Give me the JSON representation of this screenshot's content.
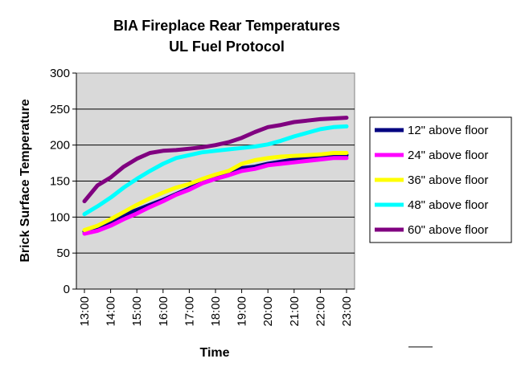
{
  "chart_data": {
    "type": "line",
    "title": "BIA Fireplace Rear Temperatures",
    "subtitle": "UL Fuel Protocol",
    "xlabel": "Time",
    "ylabel": "Brick Surface Temperature",
    "ylim": [
      0,
      300
    ],
    "yticks": [
      0,
      50,
      100,
      150,
      200,
      250,
      300
    ],
    "xtick_labels": [
      "13:00",
      "14:00",
      "15:00",
      "16:00",
      "17:00",
      "18:00",
      "19:00",
      "20:00",
      "21:00",
      "22:00",
      "23:00"
    ],
    "x_hours": [
      13,
      13.5,
      14,
      14.5,
      15,
      15.5,
      16,
      16.5,
      17,
      17.5,
      18,
      18.5,
      19,
      19.5,
      20,
      20.5,
      21,
      21.5,
      22,
      22.5,
      23
    ],
    "grid": "horizontal",
    "plot_background": "#d9d9d9",
    "legend_position": "right",
    "series": [
      {
        "name": "12\" above floor",
        "color": "#000080",
        "values": [
          80,
          86,
          94,
          103,
          110,
          117,
          124,
          132,
          140,
          150,
          155,
          160,
          168,
          170,
          174,
          177,
          180,
          182,
          184,
          186,
          186
        ]
      },
      {
        "name": "24\" above floor",
        "color": "#ff00ff",
        "values": [
          77,
          81,
          88,
          97,
          105,
          114,
          122,
          131,
          138,
          147,
          153,
          158,
          164,
          167,
          172,
          174,
          176,
          178,
          180,
          182,
          182
        ]
      },
      {
        "name": "36\" above floor",
        "color": "#ffff00",
        "values": [
          82,
          88,
          97,
          107,
          117,
          126,
          134,
          141,
          146,
          153,
          159,
          164,
          174,
          179,
          182,
          184,
          185,
          186,
          187,
          189,
          189
        ]
      },
      {
        "name": "48\" above floor",
        "color": "#00ffff",
        "values": [
          104,
          115,
          127,
          141,
          153,
          164,
          174,
          182,
          186,
          190,
          192,
          194,
          196,
          198,
          201,
          206,
          212,
          217,
          222,
          225,
          226
        ]
      },
      {
        "name": "60\" above floor",
        "color": "#800080",
        "values": [
          122,
          144,
          155,
          170,
          181,
          189,
          192,
          193,
          195,
          197,
          200,
          204,
          210,
          218,
          225,
          228,
          232,
          234,
          236,
          237,
          238
        ]
      }
    ]
  }
}
